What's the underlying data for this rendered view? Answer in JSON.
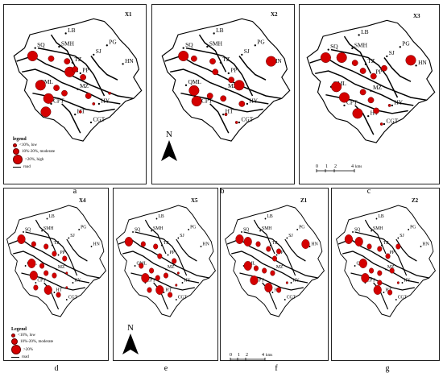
{
  "panels": [
    {
      "title": "X1",
      "letter": "a",
      "legend": true,
      "legend_variant": "a",
      "north": false,
      "scale": false
    },
    {
      "title": "X2",
      "letter": "b",
      "legend": false,
      "north": true,
      "scale": false
    },
    {
      "title": "X3",
      "letter": "c",
      "legend": false,
      "north": false,
      "scale": true
    },
    {
      "title": "X4",
      "letter": "d",
      "legend": true,
      "legend_variant": "d",
      "north": false,
      "scale": false
    },
    {
      "title": "X5",
      "letter": "e",
      "legend": false,
      "north": true,
      "scale": false
    },
    {
      "title": "Z1",
      "letter": "f",
      "legend": false,
      "north": false,
      "scale": true
    },
    {
      "title": "Z2",
      "letter": "g",
      "legend": false,
      "north": false,
      "scale": false
    }
  ],
  "legend_a": {
    "heading": "legend",
    "low": "<10%, low",
    "moderate": "10%-20%, moderate",
    "high": ">20%, high",
    "road": "road"
  },
  "legend_d": {
    "heading": "Legend",
    "low": "<10%, low",
    "moderate": "10%-20%, moderate",
    "high": ">20%",
    "road": "road"
  },
  "north_label": "N",
  "scale_labels": [
    "0",
    "1",
    "2",
    "4",
    "kms"
  ],
  "place_labels": [
    "LB",
    "SMH",
    "SQ",
    "SJ",
    "PG",
    "HN",
    "TZ",
    "PP",
    "QML",
    "MZ",
    "CPT",
    "HT",
    "HY",
    "CGT"
  ],
  "colors": {
    "circle": "#d40000",
    "circle_edge": "#5a0000",
    "road": "#000000"
  }
}
